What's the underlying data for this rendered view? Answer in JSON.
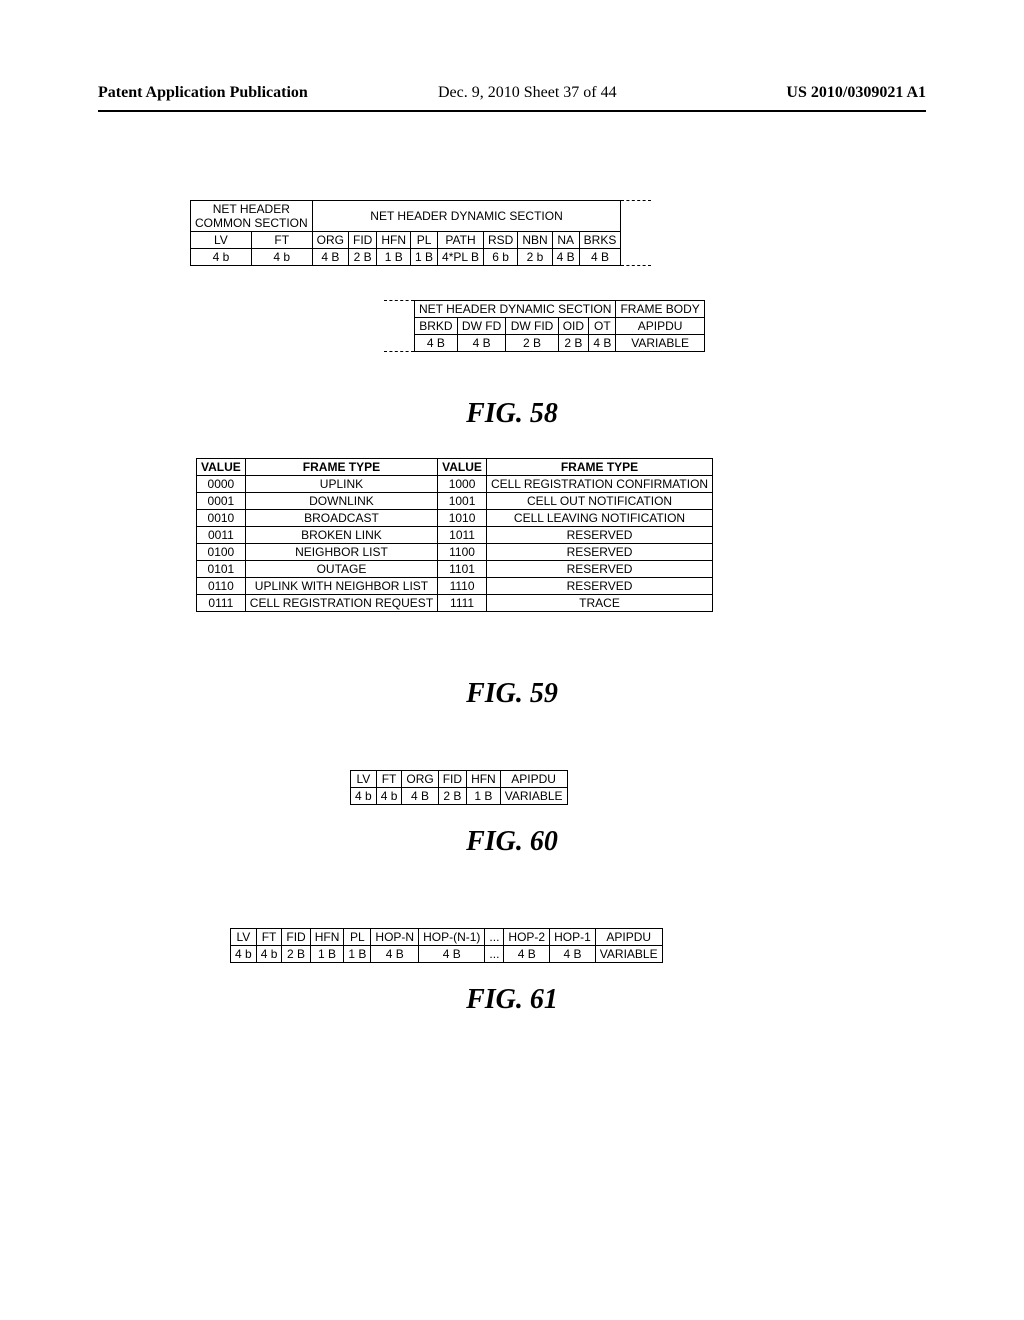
{
  "header": {
    "left": "Patent Application Publication",
    "mid": "Dec. 9, 2010  Sheet 37 of 44",
    "right": "US 2010/0309021 A1"
  },
  "fig58a": {
    "common_section_label": "NET HEADER\nCOMMON SECTION",
    "dynamic_section_label": "NET HEADER DYNAMIC SECTION",
    "cols": [
      "LV",
      "FT",
      "ORG",
      "FID",
      "HFN",
      "PL",
      "PATH",
      "RSD",
      "NBN",
      "NA",
      "BRKS"
    ],
    "sizes": [
      "4 b",
      "4 b",
      "4 B",
      "2 B",
      "1 B",
      "1 B",
      "4*PL B",
      "6 b",
      "2 b",
      "4 B",
      "4 B"
    ]
  },
  "fig58b": {
    "dynamic_section_label": "NET HEADER DYNAMIC SECTION",
    "frame_body_label": "FRAME BODY",
    "cols": [
      "BRKD",
      "DW FD",
      "DW FID",
      "OID",
      "OT",
      "APIPDU"
    ],
    "sizes": [
      "4 B",
      "4 B",
      "2 B",
      "2 B",
      "4 B",
      "VARIABLE"
    ]
  },
  "fig58_label": "FIG. 58",
  "fig59": {
    "headers": [
      "VALUE",
      "FRAME TYPE",
      "VALUE",
      "FRAME TYPE"
    ],
    "rows": [
      [
        "0000",
        "UPLINK",
        "1000",
        "CELL REGISTRATION CONFIRMATION"
      ],
      [
        "0001",
        "DOWNLINK",
        "1001",
        "CELL OUT NOTIFICATION"
      ],
      [
        "0010",
        "BROADCAST",
        "1010",
        "CELL LEAVING NOTIFICATION"
      ],
      [
        "0011",
        "BROKEN LINK",
        "1011",
        "RESERVED"
      ],
      [
        "0100",
        "NEIGHBOR LIST",
        "1100",
        "RESERVED"
      ],
      [
        "0101",
        "OUTAGE",
        "1101",
        "RESERVED"
      ],
      [
        "0110",
        "UPLINK WITH NEIGHBOR LIST",
        "1110",
        "RESERVED"
      ],
      [
        "0111",
        "CELL REGISTRATION REQUEST",
        "1111",
        "TRACE"
      ]
    ]
  },
  "fig59_label": "FIG. 59",
  "fig60": {
    "cols": [
      "LV",
      "FT",
      "ORG",
      "FID",
      "HFN",
      "APIPDU"
    ],
    "sizes": [
      "4 b",
      "4 b",
      "4 B",
      "2 B",
      "1 B",
      "VARIABLE"
    ]
  },
  "fig60_label": "FIG. 60",
  "fig61": {
    "cols": [
      "LV",
      "FT",
      "FID",
      "HFN",
      "PL",
      "HOP-N",
      "HOP-(N-1)",
      "...",
      "HOP-2",
      "HOP-1",
      "APIPDU"
    ],
    "sizes": [
      "4 b",
      "4 b",
      "2 B",
      "1 B",
      "1 B",
      "4 B",
      "4 B",
      "...",
      "4 B",
      "4 B",
      "VARIABLE"
    ]
  },
  "fig61_label": "FIG. 61"
}
